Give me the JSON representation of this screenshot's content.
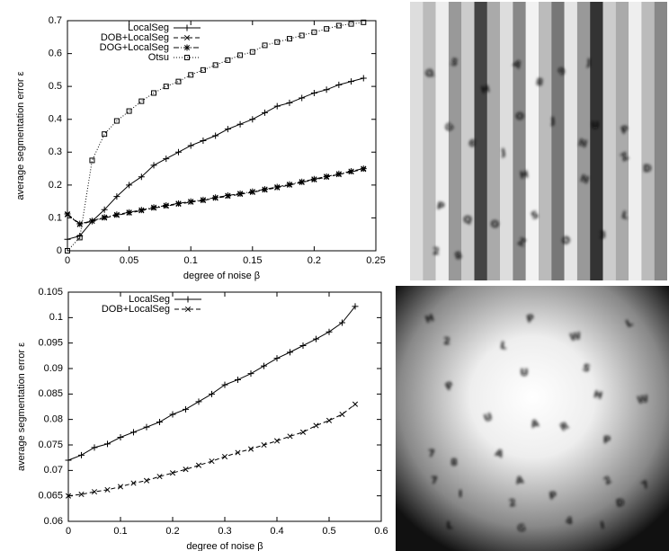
{
  "chart_data": [
    {
      "type": "line",
      "xlabel": "degree of noise β",
      "ylabel": "average segmentation error ε",
      "xlim": [
        0,
        0.25
      ],
      "xticks": [
        0,
        0.05,
        0.1,
        0.15,
        0.2,
        0.25
      ],
      "ylim": [
        0,
        0.7
      ],
      "yticks": [
        0,
        0.1,
        0.2,
        0.3,
        0.4,
        0.5,
        0.6,
        0.7
      ],
      "legend": "upper-left",
      "x": [
        0,
        0.01,
        0.02,
        0.03,
        0.04,
        0.05,
        0.06,
        0.07,
        0.08,
        0.09,
        0.1,
        0.11,
        0.12,
        0.13,
        0.14,
        0.15,
        0.16,
        0.17,
        0.18,
        0.19,
        0.2,
        0.21,
        0.22,
        0.23,
        0.24
      ],
      "series": [
        {
          "name": "LocalSeg",
          "color": "#000000",
          "marker": "plus",
          "dash": "solid",
          "values": [
            0.035,
            0.045,
            0.09,
            0.125,
            0.165,
            0.2,
            0.225,
            0.26,
            0.28,
            0.3,
            0.32,
            0.335,
            0.35,
            0.37,
            0.385,
            0.4,
            0.42,
            0.44,
            0.45,
            0.465,
            0.48,
            0.49,
            0.505,
            0.515,
            0.525
          ]
        },
        {
          "name": "DOB+LocalSeg",
          "color": "#000000",
          "marker": "cross",
          "dash": "dashed",
          "values": [
            0.11,
            0.08,
            0.09,
            0.1,
            0.108,
            0.115,
            0.122,
            0.13,
            0.136,
            0.142,
            0.148,
            0.153,
            0.16,
            0.166,
            0.172,
            0.178,
            0.185,
            0.192,
            0.2,
            0.208,
            0.216,
            0.224,
            0.232,
            0.24,
            0.248
          ]
        },
        {
          "name": "DOG+LocalSeg",
          "color": "#000000",
          "marker": "star",
          "dash": "dashdot",
          "values": [
            0.112,
            0.082,
            0.091,
            0.102,
            0.11,
            0.117,
            0.124,
            0.132,
            0.138,
            0.144,
            0.15,
            0.155,
            0.162,
            0.168,
            0.174,
            0.18,
            0.187,
            0.194,
            0.202,
            0.21,
            0.218,
            0.226,
            0.234,
            0.242,
            0.25
          ]
        },
        {
          "name": "Otsu",
          "color": "#000000",
          "marker": "square",
          "dash": "dotted",
          "values": [
            0,
            0.04,
            0.275,
            0.355,
            0.395,
            0.425,
            0.455,
            0.48,
            0.5,
            0.515,
            0.535,
            0.55,
            0.565,
            0.58,
            0.595,
            0.605,
            0.625,
            0.635,
            0.645,
            0.655,
            0.665,
            0.675,
            0.685,
            0.69,
            0.695
          ]
        }
      ]
    },
    {
      "type": "line",
      "xlabel": "degree of noise β",
      "ylabel": "average segmentation error ε",
      "xlim": [
        0,
        0.6
      ],
      "xticks": [
        0,
        0.1,
        0.2,
        0.3,
        0.4,
        0.5,
        0.6
      ],
      "ylim": [
        0.06,
        0.105
      ],
      "yticks": [
        0.06,
        0.065,
        0.07,
        0.075,
        0.08,
        0.085,
        0.09,
        0.095,
        0.1,
        0.105
      ],
      "legend": "upper-left",
      "x": [
        0,
        0.025,
        0.05,
        0.075,
        0.1,
        0.125,
        0.15,
        0.175,
        0.2,
        0.225,
        0.25,
        0.275,
        0.3,
        0.325,
        0.35,
        0.375,
        0.4,
        0.425,
        0.45,
        0.475,
        0.5,
        0.525,
        0.55
      ],
      "series": [
        {
          "name": "LocalSeg",
          "color": "#000000",
          "marker": "plus",
          "dash": "solid",
          "values": [
            0.072,
            0.073,
            0.0745,
            0.0752,
            0.0765,
            0.0775,
            0.0785,
            0.0795,
            0.081,
            0.082,
            0.0835,
            0.085,
            0.0868,
            0.0878,
            0.089,
            0.0905,
            0.092,
            0.0932,
            0.0945,
            0.0958,
            0.0972,
            0.099,
            0.1022
          ]
        },
        {
          "name": "DOB+LocalSeg",
          "color": "#000000",
          "marker": "cross",
          "dash": "dashed",
          "values": [
            0.065,
            0.0653,
            0.0658,
            0.0662,
            0.0668,
            0.0675,
            0.068,
            0.0688,
            0.0695,
            0.0702,
            0.071,
            0.0718,
            0.0727,
            0.0735,
            0.0742,
            0.075,
            0.0758,
            0.0767,
            0.0775,
            0.0788,
            0.0798,
            0.081,
            0.083
          ]
        }
      ]
    }
  ],
  "images": [
    {
      "letters": [
        "Q",
        "5",
        "H",
        "A",
        "8",
        "9",
        "J",
        "O",
        "G",
        "6",
        "J",
        "J",
        "N",
        "U",
        "P",
        "H",
        "N",
        "Z",
        "D",
        "P",
        "Q",
        "O",
        "S",
        "L",
        "2",
        "8",
        "Z",
        "O",
        "3"
      ]
    },
    {
      "letters": [
        "H",
        "2",
        "L",
        "P",
        "W",
        "L",
        "U",
        "S",
        "P",
        "H",
        "W",
        "U",
        "A",
        "R",
        "7",
        "8",
        "A",
        "P",
        "7",
        "A",
        "2",
        "7",
        "I",
        "2",
        "P",
        "D",
        "L",
        "G",
        "4",
        "I"
      ]
    }
  ]
}
